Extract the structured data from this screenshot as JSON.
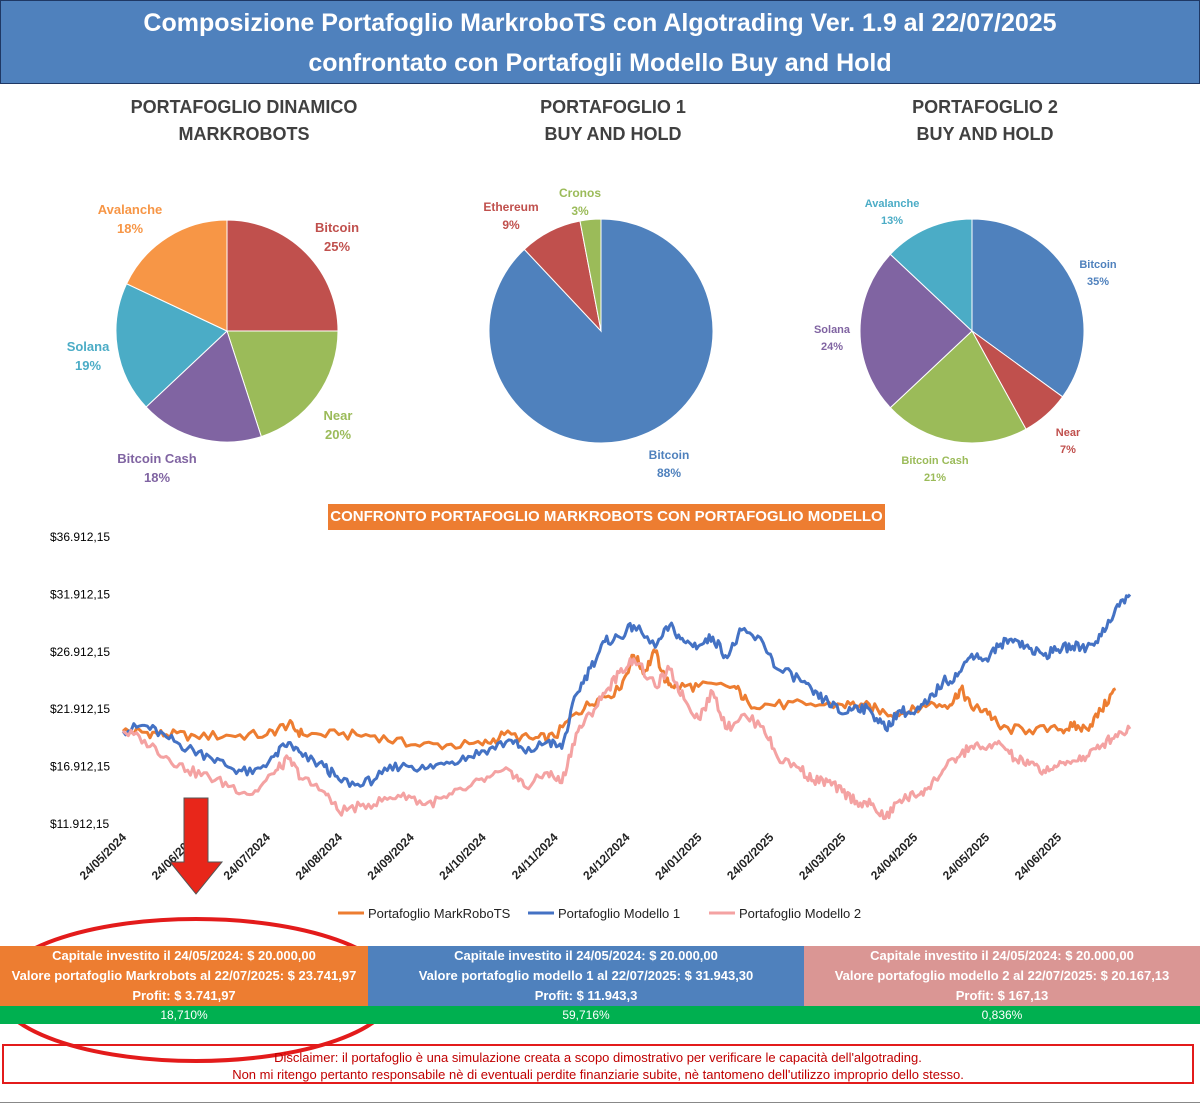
{
  "header": {
    "line1": "Composizione Portafoglio MarkroboTS con Algotrading Ver. 1.9 al 22/07/2025",
    "line2": "confrontato con Portafogli Modello Buy and Hold"
  },
  "pies": [
    {
      "title_line1": "PORTAFOGLIO DINAMICO",
      "title_line2": "MARKROBOTS",
      "slices": [
        {
          "name": "Bitcoin",
          "value": 25,
          "label": "25%",
          "color": "#c0504d"
        },
        {
          "name": "Near",
          "value": 20,
          "label": "20%",
          "color": "#9bbb59"
        },
        {
          "name": "Bitcoin Cash",
          "value": 18,
          "label": "18%",
          "color": "#8064a2"
        },
        {
          "name": "Solana",
          "value": 19,
          "label": "19%",
          "color": "#4bacc6"
        },
        {
          "name": "Avalanche",
          "value": 18,
          "label": "18%",
          "color": "#f79646"
        }
      ]
    },
    {
      "title_line1": "PORTAFOGLIO 1",
      "title_line2": "BUY AND HOLD",
      "slices": [
        {
          "name": "Bitcoin",
          "value": 88,
          "label": "88%",
          "color": "#4f81bd"
        },
        {
          "name": "Ethereum",
          "value": 9,
          "label": "9%",
          "color": "#c0504d"
        },
        {
          "name": "Cronos",
          "value": 3,
          "label": "3%",
          "color": "#9bbb59"
        }
      ]
    },
    {
      "title_line1": "PORTAFOGLIO 2",
      "title_line2": "BUY AND HOLD",
      "slices": [
        {
          "name": "Bitcoin",
          "value": 35,
          "label": "35%",
          "color": "#4f81bd"
        },
        {
          "name": "Near",
          "value": 7,
          "label": "7%",
          "color": "#c0504d"
        },
        {
          "name": "Bitcoin  Cash",
          "value": 21,
          "label": "21%",
          "color": "#9bbb59"
        },
        {
          "name": "Solana",
          "value": 24,
          "label": "24%",
          "color": "#8064a2"
        },
        {
          "name": "Avalanche",
          "value": 13,
          "label": "13%",
          "color": "#4bacc6"
        }
      ]
    }
  ],
  "chart_data": {
    "type": "line",
    "title": "CONFRONTO PORTAFOGLIO MARKROBOTS CON PORTAFOGLIO MODELLO",
    "y_ticks": [
      "$36.912,15",
      "$31.912,15",
      "$26.912,15",
      "$21.912,15",
      "$16.912,15",
      "$11.912,15"
    ],
    "ylim": [
      11912.15,
      36912.15
    ],
    "x_ticks": [
      "24/05/2024",
      "24/06/2024",
      "24/07/2024",
      "24/08/2024",
      "24/09/2024",
      "24/10/2024",
      "24/11/2024",
      "24/12/2024",
      "24/01/2025",
      "24/02/2025",
      "24/03/2025",
      "24/04/2025",
      "24/05/2025",
      "24/06/2025"
    ],
    "x_range_months": [
      0,
      14
    ],
    "series": [
      {
        "name": "Portafoglio MarkRoboTS",
        "color": "#ed7d31",
        "points": [
          [
            0,
            20000
          ],
          [
            0.3,
            19900
          ],
          [
            0.6,
            19700
          ],
          [
            1.0,
            19600
          ],
          [
            1.5,
            19600
          ],
          [
            2.0,
            19700
          ],
          [
            2.3,
            20600
          ],
          [
            2.5,
            19700
          ],
          [
            3.0,
            19700
          ],
          [
            3.5,
            19600
          ],
          [
            4.0,
            18800
          ],
          [
            4.5,
            18800
          ],
          [
            5.0,
            18800
          ],
          [
            5.3,
            19700
          ],
          [
            5.7,
            19300
          ],
          [
            6.0,
            19500
          ],
          [
            6.3,
            21600
          ],
          [
            6.6,
            22800
          ],
          [
            6.9,
            23600
          ],
          [
            7.1,
            26600
          ],
          [
            7.25,
            25200
          ],
          [
            7.4,
            26900
          ],
          [
            7.55,
            24300
          ],
          [
            7.7,
            23900
          ],
          [
            8.0,
            23900
          ],
          [
            8.5,
            23900
          ],
          [
            8.7,
            22400
          ],
          [
            9.0,
            22300
          ],
          [
            9.5,
            22300
          ],
          [
            10.0,
            22300
          ],
          [
            10.3,
            22300
          ],
          [
            10.6,
            21600
          ],
          [
            10.9,
            21600
          ],
          [
            11.2,
            22300
          ],
          [
            11.5,
            22300
          ],
          [
            11.65,
            23700
          ],
          [
            11.8,
            22000
          ],
          [
            12.0,
            21900
          ],
          [
            12.2,
            20200
          ],
          [
            12.6,
            20100
          ],
          [
            13.0,
            20100
          ],
          [
            13.2,
            20400
          ],
          [
            13.4,
            20200
          ],
          [
            13.6,
            21800
          ],
          [
            13.8,
            23700
          ]
        ]
      },
      {
        "name": "Portafoglio Modello 1",
        "color": "#4472c4",
        "points": [
          [
            0,
            20000
          ],
          [
            0.3,
            20500
          ],
          [
            0.6,
            19500
          ],
          [
            0.9,
            18500
          ],
          [
            1.2,
            17800
          ],
          [
            1.5,
            16800
          ],
          [
            1.8,
            16300
          ],
          [
            2.1,
            17800
          ],
          [
            2.3,
            19000
          ],
          [
            2.5,
            17800
          ],
          [
            2.8,
            16900
          ],
          [
            3.0,
            15800
          ],
          [
            3.3,
            15200
          ],
          [
            3.6,
            16300
          ],
          [
            3.9,
            17200
          ],
          [
            4.2,
            16700
          ],
          [
            4.5,
            17300
          ],
          [
            4.8,
            17800
          ],
          [
            5.1,
            18500
          ],
          [
            5.4,
            19200
          ],
          [
            5.6,
            18100
          ],
          [
            5.9,
            19100
          ],
          [
            6.1,
            18500
          ],
          [
            6.3,
            23200
          ],
          [
            6.5,
            25500
          ],
          [
            6.7,
            27800
          ],
          [
            6.9,
            28200
          ],
          [
            7.1,
            29200
          ],
          [
            7.4,
            27300
          ],
          [
            7.6,
            29200
          ],
          [
            7.8,
            27800
          ],
          [
            8.0,
            27400
          ],
          [
            8.2,
            28200
          ],
          [
            8.4,
            26400
          ],
          [
            8.6,
            28800
          ],
          [
            8.9,
            27700
          ],
          [
            9.1,
            25400
          ],
          [
            9.4,
            24600
          ],
          [
            9.6,
            23200
          ],
          [
            9.8,
            22600
          ],
          [
            10.0,
            21500
          ],
          [
            10.2,
            22200
          ],
          [
            10.4,
            21700
          ],
          [
            10.6,
            20200
          ],
          [
            10.8,
            21800
          ],
          [
            11.0,
            21500
          ],
          [
            11.2,
            22600
          ],
          [
            11.4,
            24300
          ],
          [
            11.6,
            24800
          ],
          [
            11.8,
            26700
          ],
          [
            12.0,
            26300
          ],
          [
            12.2,
            27600
          ],
          [
            12.4,
            28000
          ],
          [
            12.6,
            27200
          ],
          [
            12.8,
            26600
          ],
          [
            13.0,
            27100
          ],
          [
            13.2,
            27400
          ],
          [
            13.4,
            27300
          ],
          [
            13.6,
            28300
          ],
          [
            13.8,
            30700
          ],
          [
            14.0,
            31900
          ]
        ]
      },
      {
        "name": "Portafoglio Modello 2",
        "color": "#f4a2a2",
        "points": [
          [
            0,
            20000
          ],
          [
            0.3,
            19200
          ],
          [
            0.6,
            17800
          ],
          [
            0.9,
            16600
          ],
          [
            1.2,
            16000
          ],
          [
            1.5,
            15200
          ],
          [
            1.8,
            14500
          ],
          [
            2.1,
            16300
          ],
          [
            2.3,
            17600
          ],
          [
            2.5,
            15800
          ],
          [
            2.8,
            14700
          ],
          [
            3.0,
            13000
          ],
          [
            3.3,
            13500
          ],
          [
            3.6,
            13900
          ],
          [
            3.9,
            14600
          ],
          [
            4.2,
            13600
          ],
          [
            4.5,
            14200
          ],
          [
            4.8,
            15100
          ],
          [
            5.1,
            16000
          ],
          [
            5.4,
            16500
          ],
          [
            5.6,
            15100
          ],
          [
            5.9,
            16400
          ],
          [
            6.1,
            15500
          ],
          [
            6.3,
            19800
          ],
          [
            6.5,
            21500
          ],
          [
            6.7,
            23300
          ],
          [
            6.9,
            25100
          ],
          [
            7.1,
            26300
          ],
          [
            7.4,
            23900
          ],
          [
            7.6,
            25400
          ],
          [
            7.8,
            22800
          ],
          [
            8.0,
            21100
          ],
          [
            8.2,
            23400
          ],
          [
            8.4,
            20200
          ],
          [
            8.6,
            21400
          ],
          [
            8.9,
            20400
          ],
          [
            9.1,
            17700
          ],
          [
            9.4,
            16800
          ],
          [
            9.6,
            15700
          ],
          [
            9.8,
            15600
          ],
          [
            10.0,
            14700
          ],
          [
            10.2,
            13900
          ],
          [
            10.4,
            13600
          ],
          [
            10.6,
            12400
          ],
          [
            10.8,
            14000
          ],
          [
            11.0,
            14400
          ],
          [
            11.2,
            15100
          ],
          [
            11.4,
            16600
          ],
          [
            11.6,
            17700
          ],
          [
            11.8,
            18700
          ],
          [
            12.0,
            18400
          ],
          [
            12.2,
            18900
          ],
          [
            12.4,
            17600
          ],
          [
            12.6,
            17100
          ],
          [
            12.8,
            16600
          ],
          [
            13.0,
            17000
          ],
          [
            13.2,
            17400
          ],
          [
            13.4,
            17800
          ],
          [
            13.6,
            18700
          ],
          [
            13.8,
            19700
          ],
          [
            14.0,
            20200
          ]
        ]
      }
    ],
    "legend": [
      "Portafoglio MarkRoboTS",
      "Portafoglio Modello 1",
      "Portafoglio Modello 2"
    ]
  },
  "summary": [
    {
      "line1": "Capitale investito il 24/05/2024: $ 20.000,00",
      "line2": "Valore portafoglio Markrobots al 22/07/2025: $ 23.741,97",
      "line3": "Profit: $  3.741,97",
      "percent": "18,710%",
      "color": "#ed7d31"
    },
    {
      "line1": "Capitale investito il 24/05/2024: $ 20.000,00",
      "line2": "Valore portafoglio modello 1 al 22/07/2025: $ 31.943,30",
      "line3": "Profit: $   11.943,3",
      "percent": "59,716%",
      "color": "#4f81bd"
    },
    {
      "line1": "Capitale investito il 24/05/2024: $ 20.000,00",
      "line2": "Valore portafoglio modello 2 al 22/07/2025: $ 20.167,13",
      "line3": "Profit: $  167,13",
      "percent": "0,836%",
      "color": "#da9694"
    }
  ],
  "disclaimer": {
    "line1": "Disclaimer: il portafoglio è una simulazione creata a scopo dimostrativo per verificare le capacità dell'algotrading.",
    "line2": "Non mi ritengo pertanto responsabile nè di eventuali perdite finanziarie subite, nè tantomeno dell'utilizzo improprio dello stesso."
  },
  "annotation": {
    "arrow_color": "#e8261a",
    "ellipse_color": "#e31b1b"
  }
}
